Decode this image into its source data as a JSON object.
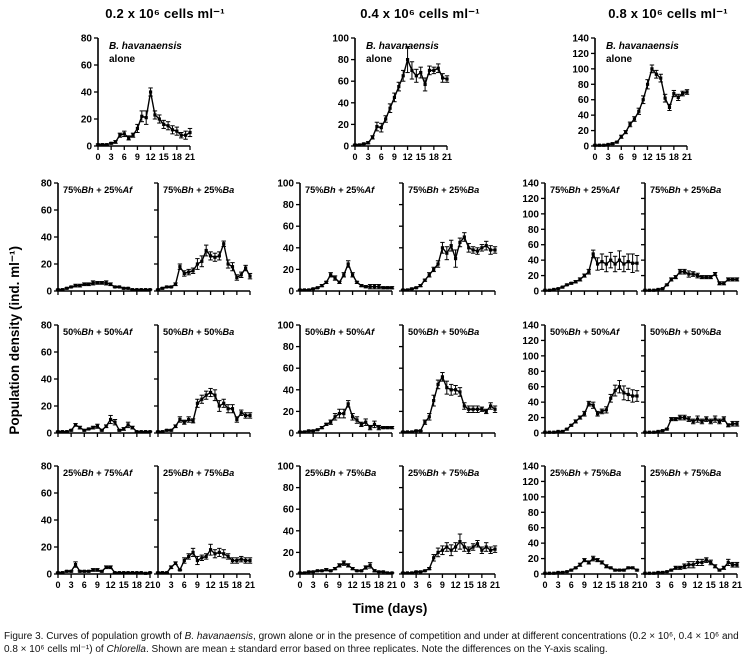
{
  "figure": {
    "col_headers": [
      "0.2 x 10⁶ cells ml⁻¹",
      "0.4 x 10⁶ cells ml⁻¹",
      "0.8 x 10⁶ cells ml⁻¹"
    ],
    "ylabel": "Population density (ind. ml⁻¹)",
    "xlabel": "Time (days)",
    "caption": "Figure 3. Curves of population growth of B. havanaensis, grown alone or in the presence of competition and under at different concentrations (0.2 × 10⁶, 0.4 × 10⁶ and 0.8 × 10⁶ cells ml⁻¹) of Chlorella. Shown are mean ± standard error based on three replicates. Note the differences on the Y-axis scaling.",
    "italic_tokens": [
      "B. havanaensis",
      "Chlorella"
    ],
    "line_color": "#000000"
  },
  "chart_data": {
    "type": "line",
    "note": "mean ± standard error, population density (ind. ml⁻¹) vs time (days)",
    "days": [
      0,
      1,
      2,
      3,
      4,
      5,
      6,
      7,
      8,
      9,
      10,
      11,
      12,
      13,
      14,
      15,
      16,
      17,
      18,
      19,
      20,
      21
    ],
    "xticks": [
      0,
      3,
      6,
      9,
      12,
      15,
      18,
      21
    ],
    "charts": [
      {
        "id": "chart-02-alone",
        "col": 0,
        "row": 0,
        "slot": "single",
        "title_lines": [
          "B. havanaensis",
          "alone"
        ],
        "ymax": 80,
        "y": [
          1,
          1,
          1,
          2,
          3,
          8,
          9,
          6,
          8,
          13,
          22,
          21,
          40,
          23,
          20,
          16,
          15,
          12,
          11,
          8,
          8,
          10
        ],
        "err": [
          0.5,
          0.5,
          0.5,
          0.5,
          1,
          1.5,
          2,
          1.5,
          1.5,
          3,
          4,
          5,
          3,
          3,
          3,
          3,
          3,
          3,
          3,
          2,
          3,
          3
        ],
        "yticklabels": true,
        "xticklabels": true
      },
      {
        "id": "chart-04-alone",
        "col": 1,
        "row": 0,
        "slot": "single",
        "title_lines": [
          "B. havanaensis",
          "alone"
        ],
        "ymax": 100,
        "y": [
          1,
          1,
          2,
          3,
          8,
          18,
          17,
          25,
          35,
          45,
          55,
          65,
          80,
          70,
          65,
          68,
          57,
          70,
          70,
          72,
          63,
          62
        ],
        "err": [
          0.5,
          0.5,
          0.5,
          1,
          1.5,
          4,
          4,
          3,
          4,
          4,
          4,
          5,
          12,
          8,
          6,
          5,
          6,
          4,
          3,
          4,
          4,
          3
        ],
        "yticklabels": true,
        "xticklabels": true
      },
      {
        "id": "chart-08-alone",
        "col": 2,
        "row": 0,
        "slot": "single",
        "title_lines": [
          "B. havanaensis",
          "alone"
        ],
        "ymax": 140,
        "y": [
          1,
          1,
          1,
          2,
          3,
          5,
          12,
          18,
          28,
          35,
          45,
          60,
          80,
          100,
          93,
          88,
          62,
          50,
          68,
          63,
          68,
          70
        ],
        "err": [
          0.5,
          0.5,
          0.5,
          0.5,
          1,
          1,
          2,
          2,
          3,
          3,
          4,
          5,
          6,
          5,
          5,
          5,
          5,
          4,
          4,
          4,
          3,
          3
        ],
        "yticklabels": true,
        "xticklabels": true
      },
      {
        "id": "chart-02-75bh-25af",
        "col": 0,
        "row": 1,
        "slot": "left",
        "title": "75%Bh + 25%Af",
        "ymax": 80,
        "y": [
          1,
          1,
          2,
          3,
          4,
          4,
          5,
          5,
          6,
          6,
          6,
          6,
          5,
          3,
          3,
          2,
          2,
          1,
          1,
          1,
          1,
          1
        ],
        "err": [
          0.3,
          0.3,
          0.5,
          0.5,
          1,
          1,
          1,
          1,
          1.5,
          1,
          1,
          1.5,
          1,
          0.5,
          0.5,
          0.5,
          0.5,
          0.3,
          0.3,
          0.3,
          0.3,
          0.3
        ],
        "yticklabels": true,
        "xticklabels": false
      },
      {
        "id": "chart-02-75bh-25ba",
        "col": 0,
        "row": 1,
        "slot": "right",
        "title": "75%Bh + 25%Ba",
        "ymax": 80,
        "y": [
          1,
          2,
          3,
          3,
          5,
          18,
          13,
          14,
          15,
          20,
          22,
          30,
          26,
          25,
          26,
          35,
          20,
          18,
          10,
          12,
          17,
          11
        ],
        "err": [
          0.3,
          0.5,
          0.5,
          0.5,
          1,
          2,
          2,
          2,
          2,
          4,
          4,
          4,
          3,
          3,
          3,
          2,
          3,
          3,
          2,
          2,
          2,
          2
        ],
        "yticklabels": false,
        "xticklabels": false
      },
      {
        "id": "chart-04-75bh-25af",
        "col": 1,
        "row": 1,
        "slot": "left",
        "title": "75%Bh + 25%Af",
        "ymax": 100,
        "y": [
          1,
          1,
          1,
          2,
          3,
          5,
          8,
          15,
          12,
          8,
          15,
          25,
          15,
          8,
          5,
          4,
          4,
          4,
          4,
          3,
          3,
          3
        ],
        "err": [
          0.3,
          0.3,
          0.3,
          0.5,
          0.5,
          1,
          1,
          2,
          2,
          1,
          2,
          3,
          2,
          1,
          1,
          1,
          2,
          2,
          2,
          1,
          1,
          1
        ],
        "yticklabels": true,
        "xticklabels": false
      },
      {
        "id": "chart-04-75bh-25ba",
        "col": 1,
        "row": 1,
        "slot": "right",
        "title": "75%Bh + 25%Ba",
        "ymax": 100,
        "y": [
          1,
          1,
          2,
          3,
          5,
          10,
          15,
          20,
          25,
          40,
          35,
          42,
          30,
          45,
          50,
          40,
          38,
          37,
          40,
          42,
          38,
          38
        ],
        "err": [
          0.3,
          0.3,
          0.5,
          0.5,
          1,
          1,
          2,
          2,
          3,
          5,
          6,
          5,
          8,
          4,
          4,
          4,
          3,
          3,
          3,
          4,
          4,
          3
        ],
        "yticklabels": false,
        "xticklabels": false
      },
      {
        "id": "chart-08-75bh-25af",
        "col": 2,
        "row": 1,
        "slot": "left",
        "title": "75%Bh + 25%Af",
        "ymax": 140,
        "y": [
          1,
          1,
          2,
          3,
          5,
          8,
          10,
          12,
          15,
          20,
          25,
          48,
          35,
          38,
          35,
          40,
          35,
          40,
          35,
          38,
          36,
          36
        ],
        "err": [
          0.3,
          0.3,
          0.5,
          0.5,
          1,
          1,
          1,
          1.5,
          2,
          2,
          3,
          5,
          8,
          10,
          10,
          10,
          10,
          12,
          10,
          10,
          12,
          10
        ],
        "yticklabels": true,
        "xticklabels": false
      },
      {
        "id": "chart-08-75bh-25ba",
        "col": 2,
        "row": 1,
        "slot": "right",
        "title": "75%Bh + 25%Ba",
        "ymax": 140,
        "y": [
          1,
          1,
          1,
          2,
          3,
          8,
          15,
          18,
          25,
          25,
          22,
          22,
          20,
          18,
          18,
          18,
          22,
          10,
          10,
          15,
          15,
          15
        ],
        "err": [
          0.3,
          0.3,
          0.3,
          0.5,
          0.5,
          1,
          2,
          2,
          3,
          3,
          4,
          3,
          3,
          2,
          2,
          2,
          2,
          2,
          2,
          2,
          2,
          2
        ],
        "yticklabels": false,
        "xticklabels": false
      },
      {
        "id": "chart-02-50bh-50af",
        "col": 0,
        "row": 2,
        "slot": "left",
        "title": "50%Bh + 50%Af",
        "ymax": 80,
        "y": [
          1,
          1,
          1,
          2,
          6,
          4,
          2,
          3,
          4,
          5,
          2,
          5,
          10,
          8,
          2,
          3,
          6,
          4,
          1,
          1,
          1,
          1
        ],
        "err": [
          0.3,
          0.3,
          0.3,
          0.5,
          1,
          1,
          0.5,
          0.5,
          1,
          1.5,
          0.5,
          1,
          3,
          2,
          0.5,
          1,
          2,
          1,
          0.3,
          0.3,
          0.3,
          0.3
        ],
        "yticklabels": true,
        "xticklabels": false
      },
      {
        "id": "chart-02-50bh-50ba",
        "col": 0,
        "row": 2,
        "slot": "right",
        "title": "50%Bh + 50%Ba",
        "ymax": 80,
        "y": [
          1,
          1,
          2,
          2,
          5,
          10,
          8,
          10,
          9,
          22,
          25,
          28,
          30,
          28,
          20,
          22,
          18,
          18,
          10,
          15,
          13,
          13
        ],
        "err": [
          0.3,
          0.3,
          0.5,
          0.5,
          1,
          2,
          1.5,
          2,
          1.5,
          3,
          3,
          3,
          3,
          4,
          4,
          3,
          3,
          3,
          2,
          2,
          2,
          2
        ],
        "yticklabels": false,
        "xticklabels": false
      },
      {
        "id": "chart-04-50bh-50af",
        "col": 1,
        "row": 2,
        "slot": "left",
        "title": "50%Bh + 50%Af",
        "ymax": 100,
        "y": [
          1,
          1,
          2,
          2,
          3,
          5,
          8,
          10,
          15,
          18,
          18,
          27,
          15,
          12,
          8,
          10,
          5,
          8,
          5,
          5,
          5,
          5
        ],
        "err": [
          0.3,
          0.3,
          0.5,
          0.5,
          0.5,
          1,
          1,
          2,
          3,
          4,
          4,
          3,
          3,
          3,
          2,
          3,
          2,
          3,
          2,
          1,
          1,
          1
        ],
        "yticklabels": true,
        "xticklabels": false
      },
      {
        "id": "chart-04-50bh-50ba",
        "col": 1,
        "row": 2,
        "slot": "right",
        "title": "50%Bh + 50%Ba",
        "ymax": 100,
        "y": [
          1,
          1,
          1,
          2,
          2,
          10,
          15,
          30,
          45,
          52,
          42,
          40,
          40,
          38,
          25,
          22,
          22,
          22,
          22,
          20,
          25,
          22
        ],
        "err": [
          0.3,
          0.3,
          0.3,
          0.5,
          0.5,
          2,
          3,
          5,
          4,
          4,
          6,
          5,
          4,
          4,
          3,
          3,
          3,
          3,
          2,
          2,
          3,
          3
        ],
        "yticklabels": false,
        "xticklabels": false
      },
      {
        "id": "chart-08-50bh-50af",
        "col": 2,
        "row": 2,
        "slot": "left",
        "title": "50%Bh + 50%Af",
        "ymax": 140,
        "y": [
          1,
          1,
          1,
          2,
          2,
          5,
          10,
          15,
          20,
          25,
          38,
          36,
          25,
          28,
          30,
          45,
          55,
          60,
          52,
          50,
          48,
          48
        ],
        "err": [
          0.3,
          0.3,
          0.3,
          0.5,
          0.5,
          1,
          1,
          2,
          2,
          3,
          3,
          4,
          3,
          3,
          4,
          5,
          7,
          8,
          9,
          8,
          8,
          7
        ],
        "yticklabels": true,
        "xticklabels": false
      },
      {
        "id": "chart-08-50bh-50ba",
        "col": 2,
        "row": 2,
        "slot": "right",
        "title": "50%Bh + 50%Ba",
        "ymax": 140,
        "y": [
          1,
          1,
          1,
          2,
          3,
          5,
          18,
          18,
          20,
          20,
          18,
          15,
          18,
          15,
          18,
          15,
          18,
          15,
          18,
          10,
          12,
          12
        ],
        "err": [
          0.3,
          0.3,
          0.3,
          0.5,
          0.5,
          1,
          2,
          2,
          3,
          3,
          3,
          3,
          4,
          3,
          3,
          3,
          4,
          3,
          3,
          2,
          3,
          3
        ],
        "yticklabels": false,
        "xticklabels": false
      },
      {
        "id": "chart-02-25bh-75af",
        "col": 0,
        "row": 3,
        "slot": "left",
        "title": "25%Bh + 75%Af",
        "ymax": 80,
        "y": [
          1,
          1,
          2,
          2,
          7,
          2,
          2,
          2,
          3,
          3,
          2,
          5,
          5,
          1,
          1,
          1,
          1,
          1,
          1,
          1,
          0.5,
          1
        ],
        "err": [
          0.3,
          0.3,
          0.5,
          0.5,
          2,
          0.5,
          0.5,
          0.5,
          1,
          1,
          0.5,
          1,
          1,
          0.3,
          0.3,
          0.3,
          0.3,
          0.3,
          0.3,
          0.3,
          0.3,
          0.3
        ],
        "yticklabels": true,
        "xticklabels": true
      },
      {
        "id": "chart-02-25bh-75ba",
        "col": 0,
        "row": 3,
        "slot": "right",
        "title": "25%Bh + 75%Ba",
        "ymax": 80,
        "y": [
          1,
          1,
          1,
          5,
          8,
          3,
          10,
          13,
          16,
          10,
          12,
          13,
          18,
          15,
          16,
          15,
          13,
          10,
          10,
          11,
          10,
          10
        ],
        "err": [
          0.3,
          0.3,
          0.3,
          1,
          1,
          0.5,
          2,
          2,
          3,
          3,
          2,
          2,
          4,
          3,
          3,
          3,
          2,
          2,
          2,
          2,
          2,
          2
        ],
        "yticklabels": false,
        "xticklabels": true
      },
      {
        "id": "chart-04-25bh-75ba-left",
        "col": 1,
        "row": 3,
        "slot": "left",
        "title": "25%Bh + 75%Ba",
        "ymax": 100,
        "y": [
          1,
          1,
          2,
          2,
          3,
          3,
          4,
          3,
          5,
          8,
          10,
          8,
          5,
          3,
          3,
          6,
          8,
          3,
          2,
          2,
          1,
          1
        ],
        "err": [
          0.3,
          0.3,
          0.5,
          0.5,
          0.5,
          0.5,
          1,
          0.5,
          1,
          1.5,
          2,
          1.5,
          1,
          0.5,
          0.5,
          1.5,
          2.5,
          1,
          0.5,
          0.5,
          0.3,
          0.3
        ],
        "yticklabels": true,
        "xticklabels": true
      },
      {
        "id": "chart-04-25bh-75ba-right",
        "col": 1,
        "row": 3,
        "slot": "right",
        "title": "25%Bh + 75%Ba",
        "ymax": 100,
        "y": [
          1,
          1,
          1,
          2,
          2,
          3,
          5,
          15,
          20,
          22,
          25,
          22,
          25,
          30,
          25,
          22,
          25,
          28,
          22,
          25,
          22,
          23
        ],
        "err": [
          0.3,
          0.3,
          0.3,
          0.5,
          0.5,
          0.5,
          1,
          3,
          4,
          4,
          4,
          5,
          4,
          7,
          4,
          3,
          3,
          3,
          3,
          4,
          3,
          3
        ],
        "yticklabels": false,
        "xticklabels": true
      },
      {
        "id": "chart-08-25bh-75ba-left",
        "col": 2,
        "row": 3,
        "slot": "left",
        "title": "25%Bh + 75%Ba",
        "ymax": 140,
        "y": [
          1,
          1,
          1,
          2,
          2,
          3,
          5,
          8,
          12,
          18,
          15,
          20,
          18,
          15,
          10,
          8,
          5,
          5,
          5,
          8,
          8,
          5
        ],
        "err": [
          0.3,
          0.3,
          0.3,
          0.5,
          0.5,
          0.5,
          1,
          1,
          2,
          2,
          2,
          3,
          2,
          2,
          2,
          1,
          1,
          1,
          1,
          1,
          1,
          1
        ],
        "yticklabels": true,
        "xticklabels": true
      },
      {
        "id": "chart-08-25bh-75ba-right",
        "col": 2,
        "row": 3,
        "slot": "right",
        "title": "25%Bh + 75%Ba",
        "ymax": 140,
        "y": [
          1,
          1,
          1,
          2,
          2,
          3,
          5,
          8,
          8,
          10,
          12,
          12,
          15,
          15,
          18,
          15,
          10,
          5,
          8,
          15,
          12,
          12
        ],
        "err": [
          0.3,
          0.3,
          0.3,
          0.5,
          0.5,
          0.5,
          1,
          2,
          2,
          3,
          4,
          4,
          4,
          4,
          3,
          3,
          2,
          1,
          2,
          4,
          3,
          3
        ],
        "yticklabels": false,
        "xticklabels": true
      }
    ]
  }
}
